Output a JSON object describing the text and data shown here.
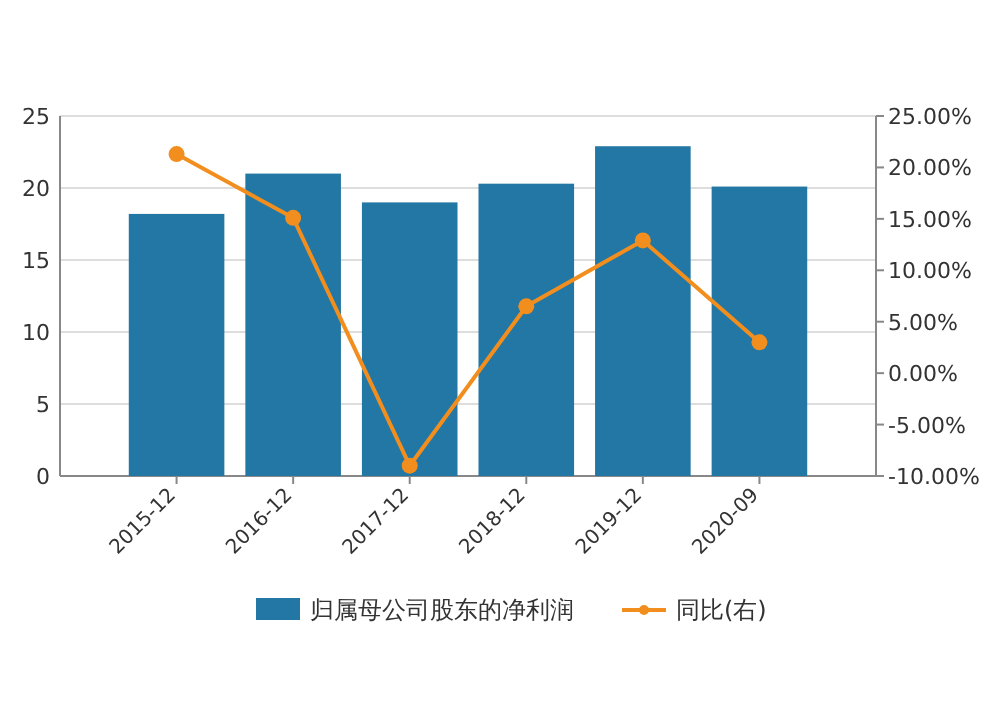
{
  "chart_data": {
    "type": "bar",
    "categories": [
      "2015-12",
      "2016-12",
      "2017-12",
      "2018-12",
      "2019-12",
      "2020-09"
    ],
    "series": [
      {
        "name": "归属母公司股东的净利润",
        "color": "#2277a4",
        "values": [
          18.2,
          21.0,
          19.0,
          20.3,
          22.9,
          20.1
        ]
      },
      {
        "name": "同比(右)",
        "type": "line",
        "axis": "y2",
        "color": "#f28e1e",
        "marker": "circle",
        "values": [
          21.3,
          15.1,
          -9.0,
          6.5,
          12.9,
          3.0
        ]
      }
    ],
    "ylim": [
      0,
      25
    ],
    "yticks": [
      0,
      5,
      10,
      15,
      20,
      25
    ],
    "y2lim": [
      -10,
      25
    ],
    "y2ticks": [
      {
        "value": -10,
        "label": "-10.00%"
      },
      {
        "value": -5,
        "label": "-5.00%"
      },
      {
        "value": 0,
        "label": "0.00%"
      },
      {
        "value": 5,
        "label": "5.00%"
      },
      {
        "value": 10,
        "label": "10.00%"
      },
      {
        "value": 15,
        "label": "15.00%"
      },
      {
        "value": 20,
        "label": "20.00%"
      },
      {
        "value": 25,
        "label": "25.00%"
      }
    ],
    "grid": "y",
    "legend": "bottom"
  }
}
